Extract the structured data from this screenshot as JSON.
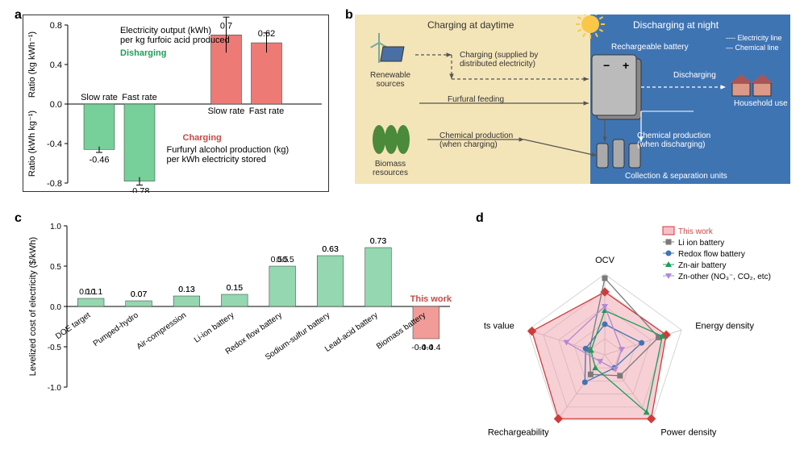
{
  "panelA": {
    "label": "a",
    "title_top": "Electricity output (kWh) per kg furfoic acid produced",
    "title_bottom": "Furfuryl alcohol production (kg) per kWh electricity stored",
    "discharge_label": "Disharging",
    "charge_label": "Charging",
    "ylabel_top": "Ratio (kg kWh⁻¹)",
    "ylabel_bottom": "Ratio (kWh kg⁻¹)",
    "categories": [
      "Slow rate",
      "Fast rate"
    ],
    "top_values": [
      0.7,
      0.62
    ],
    "bottom_values": [
      -0.46,
      -0.78
    ],
    "top_errors": [
      0.18,
      0.1
    ],
    "bottom_errors": [
      0.03,
      0.04
    ],
    "color_top": "#ee7a76",
    "color_bottom": "#77cf9a",
    "text_green": "#1d9d58",
    "text_red": "#c94a43",
    "ylim_top": [
      0,
      0.8
    ],
    "ylim_bottom": [
      -0.8,
      0
    ],
    "tick_step": 0.4
  },
  "panelB": {
    "label": "b",
    "heading_day": "Charging at daytime",
    "heading_night": "Discharging at night",
    "renewable": "Renewable sources",
    "biomass": "Biomass resources",
    "charging_note": "Charging (supplied by distributed electricity)",
    "furfural": "Furfural feeding",
    "chem_charge": "Chemical production (when charging)",
    "chem_discharge": "Chemical production (when discharging)",
    "collection": "Collection & separation units",
    "battery": "Rechargeable battery",
    "household": "Household use",
    "discharging": "Discharging",
    "legend_elec": "Electricity line",
    "legend_chem": "Chemical line",
    "day_color": "#f4e5b8",
    "night_color": "#3f74b3"
  },
  "panelC": {
    "label": "c",
    "ylabel": "Levelized cost of electricity ($/kWh)",
    "ylim": [
      -1.0,
      1.0
    ],
    "ytick_step": 0.5,
    "categories": [
      "DOE target",
      "Pumped-hydro",
      "Air-compression",
      "Li-ion battery",
      "Redox flow battery",
      "Sodium-sulfur battery",
      "Lead-acid battery",
      "Biomass battery"
    ],
    "values": [
      0.1,
      0.07,
      0.13,
      0.15,
      0.5,
      0.63,
      0.73,
      -0.4
    ],
    "colors": [
      "#94d7b0",
      "#94d7b0",
      "#94d7b0",
      "#94d7b0",
      "#94d7b0",
      "#94d7b0",
      "#94d7b0",
      "#f19c98"
    ],
    "this_work": "This work",
    "this_work_color": "#c94a43"
  },
  "panelD": {
    "label": "d",
    "axes": [
      "OCV",
      "Energy density",
      "Power density",
      "Rechargeability",
      "Products value"
    ],
    "legend": [
      "This work",
      "Li ion battery",
      "Redox flow battery",
      "Zn-air battery",
      "Zn-other (NO₃⁻, CO₂, etc)"
    ],
    "series": {
      "this_work": {
        "vals": [
          0.78,
          0.8,
          0.98,
          0.98,
          0.95
        ],
        "stroke": "#d23a3a",
        "fill": "rgba(238,150,165,0.45)",
        "marker": "diamond"
      },
      "li_ion": {
        "vals": [
          0.95,
          0.7,
          0.32,
          0.3,
          0.2
        ],
        "stroke": "#7a7a7a",
        "fill": "none",
        "marker": "square"
      },
      "redox": {
        "vals": [
          0.38,
          0.48,
          0.2,
          0.42,
          0.25
        ],
        "stroke": "#3f74b3",
        "fill": "none",
        "marker": "circle"
      },
      "zn_air": {
        "vals": [
          0.55,
          0.75,
          0.88,
          0.2,
          0.18
        ],
        "stroke": "#1d9d58",
        "fill": "none",
        "marker": "triangle"
      },
      "zn_other": {
        "vals": [
          0.6,
          0.22,
          0.22,
          0.1,
          0.5
        ],
        "stroke": "#b089d4",
        "fill": "none",
        "marker": "invtriangle"
      }
    },
    "levels": 5
  }
}
